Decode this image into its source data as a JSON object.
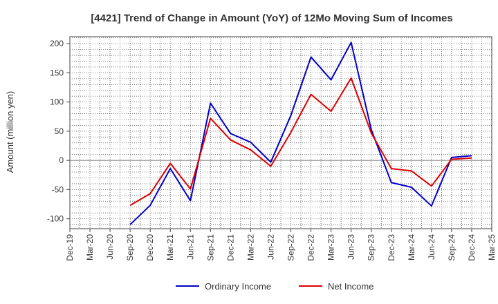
{
  "chart_data": {
    "type": "line",
    "title": "[4421]  Trend of Change in Amount (YoY) of 12Mo Moving Sum of Incomes",
    "xlabel": "",
    "ylabel": "Amount (million yen)",
    "categories": [
      "Dec-19",
      "Mar-20",
      "Jun-20",
      "Sep-20",
      "Dec-20",
      "Mar-21",
      "Jun-21",
      "Sep-21",
      "Dec-21",
      "Mar-22",
      "Jun-22",
      "Sep-22",
      "Dec-22",
      "Mar-23",
      "Jun-23",
      "Sep-23",
      "Dec-23",
      "Mar-24",
      "Jun-24",
      "Sep-24",
      "Dec-24",
      "Mar-25"
    ],
    "ylim": [
      -117,
      212
    ],
    "yticks": [
      -100,
      -50,
      0,
      50,
      100,
      150,
      200
    ],
    "ytick_labels": [
      "-100",
      "-50",
      "0",
      "50",
      "100",
      "150",
      "200"
    ],
    "grid": true,
    "legend_position": "bottom",
    "series": [
      {
        "name": "Ordinary Income",
        "color": "#0000cc",
        "values": [
          null,
          null,
          null,
          -110,
          -77,
          -14,
          -69,
          98,
          46,
          31,
          -3,
          77,
          177,
          138,
          202,
          53,
          -38,
          -46,
          -78,
          5,
          8,
          null
        ]
      },
      {
        "name": "Net Income",
        "color": "#dd0000",
        "values": [
          null,
          null,
          null,
          -77,
          -57,
          -5,
          -49,
          72,
          35,
          18,
          -10,
          48,
          113,
          84,
          141,
          47,
          -14,
          -18,
          -44,
          2,
          4,
          null
        ]
      }
    ]
  }
}
